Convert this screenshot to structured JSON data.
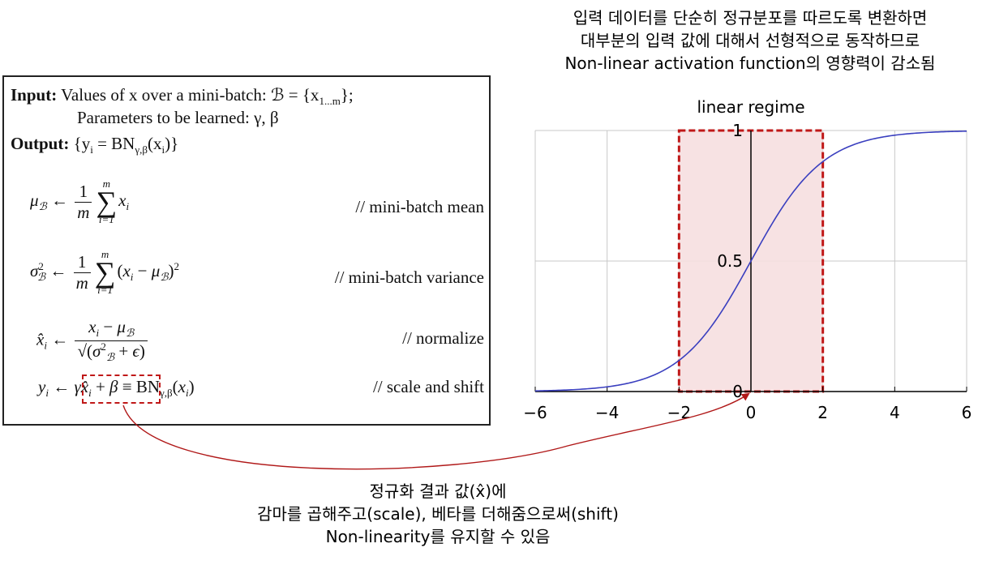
{
  "algorithm": {
    "input_label": "Input:",
    "input_text": "Values of x over a mini-batch: ℬ = {x",
    "input_sub": "1...m",
    "input_tail": "};",
    "params_text": "Parameters to be learned: γ, β",
    "output_label": "Output:",
    "output_text": "{y",
    "output_sub": "i",
    "output_tail": " = BN",
    "output_sub2": "γ,β",
    "output_tail2": "(x",
    "output_sub3": "i",
    "output_tail3": ")}",
    "mean_comment": "// mini-batch mean",
    "var_comment": "// mini-batch variance",
    "norm_comment": "// normalize",
    "scale_comment": "// scale and shift"
  },
  "top_annotation": {
    "line1": "입력 데이터를 단순히 정규분포를 따르도록 변환하면",
    "line2": "대부분의 입력 값에 대해서 선형적으로 동작하므로",
    "line3": "Non-linear activation function의 영향력이 감소됨"
  },
  "bottom_annotation": {
    "line1": "정규화 결과 값(x̂)에",
    "line2": "감마를 곱해주고(scale), 베타를 더해줌으로써(shift)",
    "line3": "Non-linearity를 유지할 수 있음"
  },
  "chart_data": {
    "type": "line",
    "function": "sigmoid",
    "x": [
      -6,
      -5,
      -4,
      -3,
      -2,
      -1,
      0,
      1,
      2,
      3,
      4,
      5,
      6
    ],
    "y": [
      0.0025,
      0.0067,
      0.018,
      0.047,
      0.119,
      0.269,
      0.5,
      0.731,
      0.881,
      0.953,
      0.982,
      0.993,
      0.9975
    ],
    "xlim": [
      -6,
      6
    ],
    "ylim": [
      0,
      1
    ],
    "x_ticks": [
      "−6",
      "−4",
      "−2",
      "0",
      "2",
      "4",
      "6"
    ],
    "y_ticks": [
      "0",
      "0.5",
      "1"
    ],
    "region_label": "linear regime",
    "region_x": [
      -2,
      2
    ],
    "grid": true,
    "line_color": "#3a3fbf",
    "region_color": "#f6dfe0",
    "region_border_color": "#c01818"
  }
}
